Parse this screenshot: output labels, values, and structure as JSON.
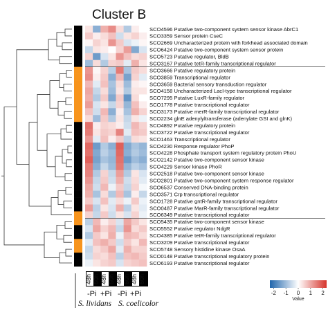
{
  "chart_data": {
    "type": "heatmap",
    "title": "Cluster B",
    "row_labels": [
      "SCO4596 Putative two-component system sensor kinase AbrC1",
      "SCO3359 Sensor protein CseC",
      "SCO2669 Uncharacterized protein with forkhead associated domain",
      "SCO6424 Putative two-component system sensor protein",
      "SCO5723 Putative regulator, BldB",
      "SCO3167 Putative tetR-family transcriptional regulator",
      "SCO3666 Putative regulatory protein",
      "SCO3859 Transcriptional regulator",
      "SCO3659 Bacterial sensory transduction regulator",
      "SCO4158 Uncharacterized LacI-type transcriptional regulator",
      "SCO7295 Putative LuxR-family regulator",
      "SCO1778 Putative transcriptional regulator",
      "SCO3173 Putative merR-family transcriptional regulator",
      "SCO2234 glnE adenylyltransferase (adenylate GSI and glnK)",
      "SCO4892 Putative regulatory protein",
      "SCO3722 Putative transcriptional regulator",
      "SCO1463 Transcriptional regulator",
      "SCO4230 Response regulator PhoP",
      "SCO4228 Phosphate transport system regulatory protein PhoU",
      "SCO2142 Putative two-component sensor kinase",
      "SCO4229 Sensor kinase PhoR",
      "SCO2518 Putative two-component sensor kinase",
      "SCO2801 Putative two-component system response regulator",
      "SCO6537 Conserved DNA-binding protein",
      "SCO3571 Crp transcriptional regulator",
      "SCO1728 Putative gntR-family transcriptional regulator",
      "SCO0487 Putative MarR-family transcriptional regulator",
      "SCO6349 Putative transcriptional regulator",
      "SCO5435 Putative two-component sensor kinase",
      "SCO5552 Putative regulator NdgR",
      "SCO4385 Putative tetR-family transcriptional regulator",
      "SCO3209 Putative transcriptional regulator",
      "SCO5748 Sensory histidine kinase OsaA",
      "SCO0148 Putative transcriptional regulatory protein",
      "SCO6193 Putative transcriptional regulator"
    ],
    "column_labels": [
      "48h",
      "60h",
      "48h",
      "60h",
      "48h",
      "60h",
      "48h",
      "60h"
    ],
    "condition_labels": [
      "-Pi",
      "+Pi",
      "-Pi",
      "+Pi"
    ],
    "species_labels": [
      "S. lividans",
      "S. coelicolor"
    ],
    "values": [
      [
        0.3,
        -1.2,
        0.9,
        1.3,
        0.4,
        -0.8,
        0.2,
        0.0
      ],
      [
        0.6,
        0.2,
        0.4,
        0.7,
        -0.5,
        0.3,
        0.5,
        0.2
      ],
      [
        0.1,
        0.5,
        0.3,
        1.2,
        0.6,
        -0.4,
        -0.2,
        0.1
      ],
      [
        -0.6,
        0.3,
        0.2,
        0.0,
        0.5,
        1.1,
        -1.3,
        -0.4
      ],
      [
        0.5,
        -1.5,
        -0.4,
        0.3,
        1.2,
        0.7,
        0.4,
        0.5
      ],
      [
        -1.0,
        0.4,
        -0.8,
        0.5,
        0.6,
        -0.3,
        0.9,
        0.3
      ],
      [
        1.2,
        0.1,
        0.5,
        -0.7,
        1.5,
        -0.9,
        0.6,
        0.4
      ],
      [
        1.3,
        0.2,
        0.6,
        -1.2,
        0.8,
        -1.4,
        0.5,
        -0.3
      ],
      [
        0.8,
        -0.3,
        0.7,
        -0.9,
        0.4,
        -1.0,
        0.2,
        0.1
      ],
      [
        1.0,
        -0.6,
        0.4,
        -1.0,
        0.3,
        -0.8,
        0.3,
        0.3
      ],
      [
        0.9,
        -0.8,
        0.6,
        -1.3,
        0.6,
        -1.6,
        0.4,
        0.0
      ],
      [
        1.1,
        -0.4,
        0.3,
        -0.6,
        0.5,
        -1.1,
        0.7,
        0.2
      ],
      [
        0.7,
        -0.5,
        0.8,
        -1.2,
        0.2,
        -0.9,
        0.9,
        0.5
      ],
      [
        0.4,
        -1.0,
        0.6,
        -0.8,
        0.3,
        -0.6,
        0.3,
        -0.2
      ],
      [
        1.6,
        0.2,
        0.5,
        0.4,
        0.2,
        -0.5,
        0.8,
        0.5
      ],
      [
        1.5,
        0.3,
        0.6,
        0.5,
        1.4,
        -0.3,
        0.7,
        0.6
      ],
      [
        1.2,
        -0.3,
        0.7,
        0.2,
        0.6,
        -0.7,
        0.4,
        0.3
      ],
      [
        1.7,
        -1.5,
        -0.8,
        -1.2,
        1.8,
        -1.3,
        -0.9,
        -1.1
      ],
      [
        1.6,
        -1.3,
        -0.7,
        -1.0,
        1.7,
        -1.2,
        -0.8,
        -1.0
      ],
      [
        1.8,
        -1.4,
        -0.9,
        -1.1,
        1.6,
        -1.5,
        -1.0,
        -1.2
      ],
      [
        1.5,
        -1.2,
        -0.6,
        -1.0,
        1.5,
        -1.1,
        -0.7,
        -0.9
      ],
      [
        1.4,
        -0.8,
        0.5,
        -0.6,
        1.1,
        -0.8,
        0.3,
        -0.4
      ],
      [
        1.2,
        -0.6,
        0.6,
        -0.5,
        0.9,
        -0.5,
        0.4,
        -0.3
      ],
      [
        1.0,
        -0.5,
        0.8,
        -0.2,
        0.6,
        -0.6,
        0.5,
        -0.1
      ],
      [
        0.9,
        -0.9,
        0.4,
        -0.8,
        0.8,
        -0.9,
        0.2,
        -0.6
      ],
      [
        0.6,
        -0.4,
        0.7,
        -0.3,
        0.4,
        -0.2,
        0.6,
        -0.2
      ],
      [
        1.1,
        -0.7,
        0.3,
        -0.4,
        0.9,
        -0.7,
        0.3,
        -0.3
      ],
      [
        0.5,
        -0.6,
        0.6,
        -0.5,
        0.3,
        -0.4,
        0.5,
        -0.2
      ],
      [
        -0.7,
        0.8,
        0.2,
        0.5,
        -0.4,
        1.0,
        0.6,
        0.3
      ],
      [
        -0.4,
        1.0,
        0.5,
        0.8,
        -0.6,
        1.2,
        0.4,
        0.6
      ],
      [
        -0.8,
        0.6,
        0.3,
        0.9,
        -0.2,
        0.8,
        0.7,
        0.4
      ],
      [
        -0.3,
        0.7,
        0.9,
        0.6,
        -0.5,
        0.6,
        0.3,
        0.8
      ],
      [
        -0.6,
        0.4,
        0.6,
        1.0,
        -0.3,
        0.9,
        0.5,
        0.5
      ],
      [
        -0.5,
        0.5,
        0.4,
        0.7,
        -0.7,
        0.7,
        0.8,
        0.6
      ],
      [
        -0.2,
        0.3,
        0.5,
        0.6,
        -0.4,
        0.5,
        0.6,
        0.7
      ]
    ],
    "row_annotation": [
      "black",
      "black",
      "black",
      "black",
      "black",
      "black",
      "orange",
      "orange",
      "orange",
      "orange",
      "orange",
      "orange",
      "orange",
      "orange",
      "black",
      "black",
      "black",
      "black",
      "black",
      "black",
      "black",
      "black",
      "black",
      "black",
      "black",
      "black",
      "black",
      "orange",
      "orange",
      "black",
      "black",
      "orange",
      "orange",
      "black",
      "black"
    ],
    "annotation_colors": {
      "black": "#000000",
      "orange": "#f7941d"
    },
    "legend": {
      "title": "Value",
      "ticks": [
        -2,
        -1,
        0,
        1,
        2
      ],
      "range": [
        -2.3,
        2.3
      ],
      "colors": [
        "#2166ac",
        "#ffffff",
        "#d6342c"
      ]
    },
    "grid": false
  }
}
